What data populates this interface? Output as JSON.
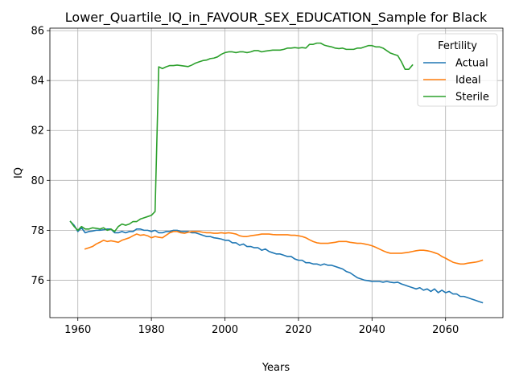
{
  "chart_data": {
    "type": "line",
    "title": "Lower_Quartile_IQ_in_FAVOUR_SEX_EDUCATION_Sample for Black",
    "xlabel": "Years",
    "ylabel": "IQ",
    "xlim": [
      1952.4,
      2075.6
    ],
    "ylim": [
      74.5,
      86.1
    ],
    "xticks": [
      1960,
      1980,
      2000,
      2020,
      2040,
      2060
    ],
    "yticks": [
      76,
      78,
      80,
      82,
      84,
      86
    ],
    "grid": true,
    "legend": {
      "title": "Fertility",
      "placement": "top-right"
    },
    "series": [
      {
        "name": "Actual",
        "color": "#1f77b4",
        "x": [
          1958,
          1959,
          1960,
          1961,
          1962,
          1963,
          1964,
          1965,
          1966,
          1967,
          1968,
          1969,
          1970,
          1971,
          1972,
          1973,
          1974,
          1975,
          1976,
          1977,
          1978,
          1979,
          1980,
          1981,
          1982,
          1983,
          1984,
          1985,
          1986,
          1987,
          1988,
          1989,
          1990,
          1991,
          1992,
          1993,
          1994,
          1995,
          1996,
          1997,
          1998,
          1999,
          2000,
          2001,
          2002,
          2003,
          2004,
          2005,
          2006,
          2007,
          2008,
          2009,
          2010,
          2011,
          2012,
          2013,
          2014,
          2015,
          2016,
          2017,
          2018,
          2019,
          2020,
          2021,
          2022,
          2023,
          2024,
          2025,
          2026,
          2027,
          2028,
          2029,
          2030,
          2031,
          2032,
          2033,
          2034,
          2035,
          2036,
          2037,
          2038,
          2039,
          2040,
          2041,
          2042,
          2043,
          2044,
          2045,
          2046,
          2047,
          2048,
          2049,
          2050,
          2051,
          2052,
          2053,
          2054,
          2055,
          2056,
          2057,
          2058,
          2059,
          2060,
          2061,
          2062,
          2063,
          2064,
          2065,
          2066,
          2067,
          2068,
          2069,
          2070
        ],
        "values": [
          78.35,
          78.2,
          77.95,
          78.1,
          77.9,
          77.95,
          77.97,
          78.0,
          78.0,
          78.02,
          78.05,
          78.05,
          77.9,
          77.9,
          77.95,
          77.9,
          77.95,
          77.95,
          78.05,
          78.05,
          78.0,
          78.0,
          77.95,
          78.0,
          77.9,
          77.9,
          77.95,
          77.95,
          78.0,
          78.0,
          77.95,
          77.95,
          77.95,
          77.9,
          77.9,
          77.85,
          77.8,
          77.75,
          77.75,
          77.7,
          77.68,
          77.65,
          77.6,
          77.6,
          77.5,
          77.5,
          77.4,
          77.45,
          77.35,
          77.35,
          77.3,
          77.3,
          77.2,
          77.25,
          77.15,
          77.1,
          77.05,
          77.05,
          77.0,
          76.95,
          76.95,
          76.85,
          76.8,
          76.8,
          76.7,
          76.7,
          76.65,
          76.65,
          76.6,
          76.65,
          76.6,
          76.6,
          76.55,
          76.5,
          76.45,
          76.35,
          76.3,
          76.2,
          76.1,
          76.05,
          76.0,
          75.98,
          75.95,
          75.95,
          75.95,
          75.92,
          75.95,
          75.92,
          75.9,
          75.92,
          75.85,
          75.8,
          75.75,
          75.7,
          75.65,
          75.7,
          75.6,
          75.65,
          75.55,
          75.65,
          75.5,
          75.6,
          75.5,
          75.55,
          75.45,
          75.45,
          75.35,
          75.35,
          75.3,
          75.25,
          75.2,
          75.15,
          75.1
        ]
      },
      {
        "name": "Ideal",
        "color": "#ff7f0e",
        "x": [
          1962,
          1963,
          1964,
          1965,
          1966,
          1967,
          1968,
          1969,
          1970,
          1971,
          1972,
          1973,
          1974,
          1975,
          1976,
          1977,
          1978,
          1979,
          1980,
          1981,
          1982,
          1983,
          1984,
          1985,
          1986,
          1987,
          1988,
          1989,
          1990,
          1991,
          1992,
          1993,
          1994,
          1995,
          1996,
          1997,
          1998,
          1999,
          2000,
          2001,
          2002,
          2003,
          2004,
          2005,
          2006,
          2007,
          2008,
          2009,
          2010,
          2011,
          2012,
          2013,
          2014,
          2015,
          2016,
          2017,
          2018,
          2019,
          2020,
          2021,
          2022,
          2023,
          2024,
          2025,
          2026,
          2027,
          2028,
          2029,
          2030,
          2031,
          2032,
          2033,
          2034,
          2035,
          2036,
          2037,
          2038,
          2039,
          2040,
          2041,
          2042,
          2043,
          2044,
          2045,
          2046,
          2047,
          2048,
          2049,
          2050,
          2051,
          2052,
          2053,
          2054,
          2055,
          2056,
          2057,
          2058,
          2059,
          2060,
          2061,
          2062,
          2063,
          2064,
          2065,
          2066,
          2067,
          2068,
          2069,
          2070
        ],
        "values": [
          77.25,
          77.3,
          77.35,
          77.45,
          77.52,
          77.6,
          77.55,
          77.58,
          77.55,
          77.52,
          77.6,
          77.65,
          77.7,
          77.78,
          77.85,
          77.8,
          77.82,
          77.78,
          77.7,
          77.75,
          77.72,
          77.7,
          77.8,
          77.9,
          77.95,
          77.95,
          77.9,
          77.88,
          77.92,
          77.95,
          77.95,
          77.95,
          77.92,
          77.9,
          77.9,
          77.88,
          77.88,
          77.9,
          77.88,
          77.9,
          77.88,
          77.85,
          77.78,
          77.75,
          77.75,
          77.78,
          77.8,
          77.82,
          77.85,
          77.85,
          77.85,
          77.83,
          77.82,
          77.82,
          77.82,
          77.82,
          77.8,
          77.8,
          77.78,
          77.75,
          77.7,
          77.62,
          77.55,
          77.5,
          77.48,
          77.48,
          77.48,
          77.5,
          77.52,
          77.55,
          77.55,
          77.55,
          77.52,
          77.5,
          77.48,
          77.48,
          77.45,
          77.42,
          77.38,
          77.32,
          77.25,
          77.18,
          77.12,
          77.08,
          77.08,
          77.08,
          77.08,
          77.1,
          77.12,
          77.15,
          77.18,
          77.2,
          77.2,
          77.18,
          77.15,
          77.1,
          77.05,
          76.95,
          76.88,
          76.8,
          76.72,
          76.68,
          76.65,
          76.65,
          76.68,
          76.7,
          76.72,
          76.75,
          76.8
        ]
      },
      {
        "name": "Sterile",
        "color": "#2ca02c",
        "x": [
          1958,
          1959,
          1960,
          1961,
          1962,
          1963,
          1964,
          1965,
          1966,
          1967,
          1968,
          1969,
          1970,
          1971,
          1972,
          1973,
          1974,
          1975,
          1976,
          1977,
          1978,
          1979,
          1980,
          1981,
          1982,
          1983,
          1984,
          1985,
          1986,
          1987,
          1988,
          1989,
          1990,
          1991,
          1992,
          1993,
          1994,
          1995,
          1996,
          1997,
          1998,
          1999,
          2000,
          2001,
          2002,
          2003,
          2004,
          2005,
          2006,
          2007,
          2008,
          2009,
          2010,
          2011,
          2012,
          2013,
          2014,
          2015,
          2016,
          2017,
          2018,
          2019,
          2020,
          2021,
          2022,
          2023,
          2024,
          2025,
          2026,
          2027,
          2028,
          2029,
          2030,
          2031,
          2032,
          2033,
          2034,
          2035,
          2036,
          2037,
          2038,
          2039,
          2040,
          2041,
          2042,
          2043,
          2044,
          2045,
          2046,
          2047,
          2048,
          2049,
          2050,
          2051
        ],
        "values": [
          78.35,
          78.15,
          78.0,
          78.15,
          78.05,
          78.05,
          78.1,
          78.08,
          78.05,
          78.1,
          78.0,
          78.05,
          77.95,
          78.15,
          78.25,
          78.2,
          78.25,
          78.35,
          78.35,
          78.45,
          78.5,
          78.55,
          78.6,
          78.75,
          84.55,
          84.48,
          84.55,
          84.6,
          84.6,
          84.62,
          84.6,
          84.58,
          84.56,
          84.62,
          84.7,
          84.75,
          84.8,
          84.82,
          84.88,
          84.9,
          84.95,
          85.05,
          85.12,
          85.15,
          85.15,
          85.12,
          85.15,
          85.15,
          85.12,
          85.15,
          85.2,
          85.2,
          85.15,
          85.18,
          85.2,
          85.22,
          85.22,
          85.22,
          85.25,
          85.3,
          85.3,
          85.32,
          85.3,
          85.32,
          85.3,
          85.45,
          85.45,
          85.5,
          85.5,
          85.42,
          85.38,
          85.35,
          85.3,
          85.28,
          85.3,
          85.25,
          85.25,
          85.25,
          85.3,
          85.3,
          85.35,
          85.4,
          85.4,
          85.35,
          85.35,
          85.3,
          85.2,
          85.1,
          85.05,
          85.0,
          84.75,
          84.45,
          84.45,
          84.62
        ]
      }
    ]
  }
}
